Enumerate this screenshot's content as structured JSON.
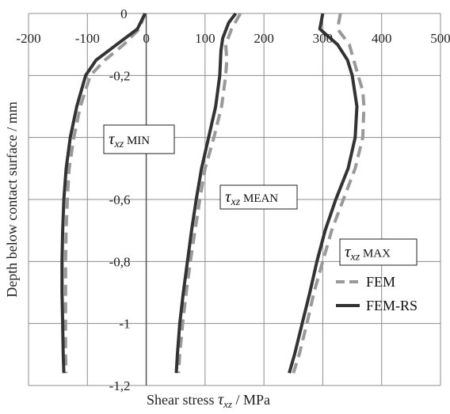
{
  "chart_data": {
    "type": "line",
    "xlabel": "Shear stress τxz / MPa",
    "xlabel_parts": {
      "prefix": "Shear stress ",
      "symbol": "τ",
      "subscript": "xz",
      "suffix": " / MPa"
    },
    "ylabel": "Depth below contact surface / mm",
    "xlim": [
      -200,
      500
    ],
    "ylim": [
      -1.2,
      0
    ],
    "x_ticks": [
      -200,
      -100,
      0,
      100,
      200,
      300,
      400,
      500
    ],
    "x_tick_labels": [
      "-200",
      "-100",
      "0",
      "100",
      "200",
      "300",
      "400",
      "500"
    ],
    "y_ticks": [
      0,
      -0.2,
      -0.4,
      -0.6,
      -0.8,
      -1.0,
      -1.2
    ],
    "y_tick_labels": [
      "0",
      "-0,2",
      "",
      "-0,6",
      "-0,8",
      "-1",
      "-1,2"
    ],
    "x_axis_position": "top",
    "grid": true,
    "legend": {
      "position": "right",
      "entries": [
        {
          "label": "FEM",
          "color": "#999999",
          "dash": true
        },
        {
          "label": "FEM-RS",
          "color": "#333333",
          "dash": false
        }
      ]
    },
    "annotations": [
      {
        "symbol": "τ",
        "subscript": "xz",
        "suffix": " MIN",
        "anchor": [
          -140,
          -0.42
        ]
      },
      {
        "symbol": "τ",
        "subscript": "xz",
        "suffix": " MEAN",
        "anchor": [
          120,
          -0.6
        ]
      },
      {
        "symbol": "τ",
        "subscript": "xz",
        "suffix": " MAX",
        "anchor": [
          310,
          -0.78
        ]
      }
    ],
    "series": [
      {
        "name": "FEM",
        "group": "MIN",
        "color": "#999999",
        "dash": true,
        "points": [
          [
            -2,
            0
          ],
          [
            -12,
            -0.05
          ],
          [
            -38,
            -0.1
          ],
          [
            -70,
            -0.15
          ],
          [
            -95,
            -0.2
          ],
          [
            -112,
            -0.3
          ],
          [
            -123,
            -0.4
          ],
          [
            -131,
            -0.5
          ],
          [
            -134,
            -0.6
          ],
          [
            -136,
            -0.7
          ],
          [
            -137,
            -0.8
          ],
          [
            -137,
            -0.9
          ],
          [
            -137,
            -1.0
          ],
          [
            -137,
            -1.1
          ],
          [
            -136,
            -1.16
          ]
        ]
      },
      {
        "name": "FEM-RS",
        "group": "MIN",
        "color": "#333333",
        "dash": false,
        "points": [
          [
            -2,
            0
          ],
          [
            -15,
            -0.05
          ],
          [
            -50,
            -0.1
          ],
          [
            -85,
            -0.15
          ],
          [
            -103,
            -0.2
          ],
          [
            -118,
            -0.3
          ],
          [
            -129,
            -0.4
          ],
          [
            -136,
            -0.5
          ],
          [
            -140,
            -0.6
          ],
          [
            -142,
            -0.7
          ],
          [
            -143,
            -0.8
          ],
          [
            -143,
            -0.9
          ],
          [
            -142,
            -1.0
          ],
          [
            -141,
            -1.1
          ],
          [
            -140,
            -1.16
          ]
        ]
      },
      {
        "name": "FEM",
        "group": "MEAN",
        "color": "#999999",
        "dash": true,
        "points": [
          [
            160,
            0
          ],
          [
            145,
            -0.05
          ],
          [
            135,
            -0.1
          ],
          [
            137,
            -0.15
          ],
          [
            135,
            -0.2
          ],
          [
            128,
            -0.3
          ],
          [
            115,
            -0.4
          ],
          [
            100,
            -0.5
          ],
          [
            91,
            -0.6
          ],
          [
            83,
            -0.7
          ],
          [
            75,
            -0.8
          ],
          [
            68,
            -0.9
          ],
          [
            62,
            -1.0
          ],
          [
            57,
            -1.1
          ],
          [
            55,
            -1.16
          ]
        ]
      },
      {
        "name": "FEM-RS",
        "group": "MEAN",
        "color": "#333333",
        "dash": false,
        "points": [
          [
            152,
            0
          ],
          [
            140,
            -0.03
          ],
          [
            130,
            -0.08
          ],
          [
            127,
            -0.12
          ],
          [
            125,
            -0.2
          ],
          [
            118,
            -0.3
          ],
          [
            106,
            -0.4
          ],
          [
            94,
            -0.5
          ],
          [
            85,
            -0.6
          ],
          [
            77,
            -0.7
          ],
          [
            70,
            -0.8
          ],
          [
            63,
            -0.9
          ],
          [
            57,
            -1.0
          ],
          [
            53,
            -1.1
          ],
          [
            51,
            -1.16
          ]
        ]
      },
      {
        "name": "FEM",
        "group": "MAX",
        "color": "#999999",
        "dash": true,
        "points": [
          [
            330,
            0
          ],
          [
            325,
            -0.05
          ],
          [
            345,
            -0.1
          ],
          [
            360,
            -0.2
          ],
          [
            368,
            -0.25
          ],
          [
            370,
            -0.3
          ],
          [
            368,
            -0.4
          ],
          [
            355,
            -0.5
          ],
          [
            335,
            -0.6
          ],
          [
            315,
            -0.7
          ],
          [
            300,
            -0.8
          ],
          [
            285,
            -0.9
          ],
          [
            273,
            -1.0
          ],
          [
            260,
            -1.1
          ],
          [
            250,
            -1.16
          ]
        ]
      },
      {
        "name": "FEM-RS",
        "group": "MAX",
        "color": "#333333",
        "dash": false,
        "points": [
          [
            300,
            0
          ],
          [
            295,
            -0.05
          ],
          [
            325,
            -0.1
          ],
          [
            342,
            -0.15
          ],
          [
            350,
            -0.2
          ],
          [
            358,
            -0.3
          ],
          [
            355,
            -0.4
          ],
          [
            343,
            -0.5
          ],
          [
            322,
            -0.6
          ],
          [
            304,
            -0.7
          ],
          [
            290,
            -0.8
          ],
          [
            278,
            -0.9
          ],
          [
            265,
            -1.0
          ],
          [
            252,
            -1.1
          ],
          [
            243,
            -1.16
          ]
        ]
      }
    ]
  }
}
